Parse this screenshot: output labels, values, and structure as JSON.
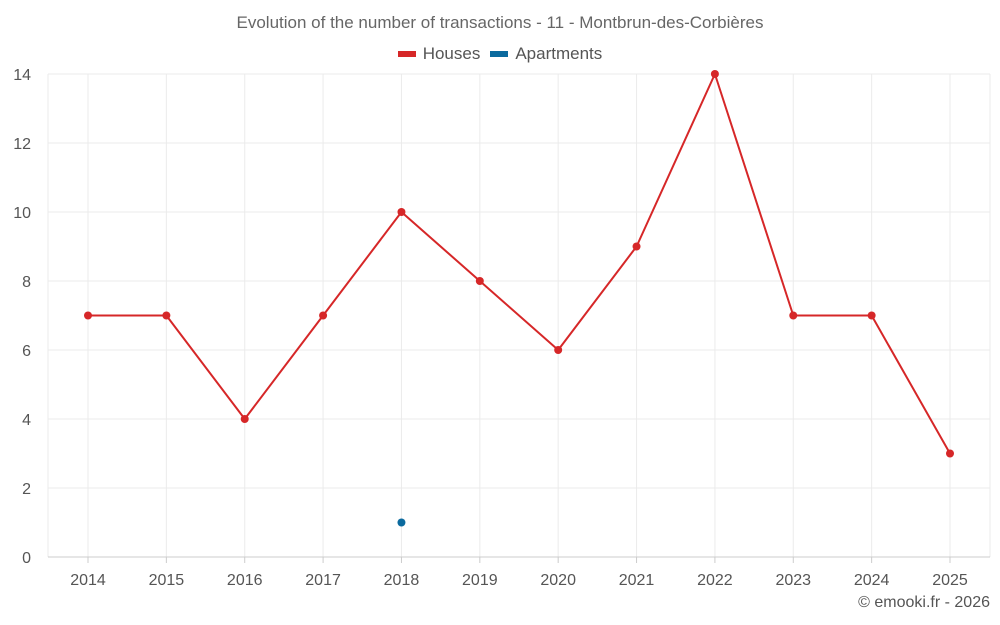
{
  "chart_data": {
    "type": "line",
    "title": "Evolution of the number of transactions - 11 - Montbrun-des-Corbières",
    "categories": [
      "2014",
      "2015",
      "2016",
      "2017",
      "2018",
      "2019",
      "2020",
      "2021",
      "2022",
      "2023",
      "2024",
      "2025"
    ],
    "series": [
      {
        "name": "Houses",
        "color": "#d62728",
        "values": [
          7,
          7,
          4,
          7,
          10,
          8,
          6,
          9,
          14,
          7,
          7,
          3
        ]
      },
      {
        "name": "Apartments",
        "color": "#0b6a9e",
        "values": [
          null,
          null,
          null,
          null,
          1,
          null,
          null,
          null,
          null,
          null,
          null,
          null
        ]
      }
    ],
    "yticks": [
      0,
      2,
      4,
      6,
      8,
      10,
      12,
      14
    ],
    "ylim": [
      0,
      14
    ],
    "xlabel": "",
    "ylabel": "",
    "grid": true,
    "legend": "top-center"
  },
  "credit": "© emooki.fr - 2026"
}
